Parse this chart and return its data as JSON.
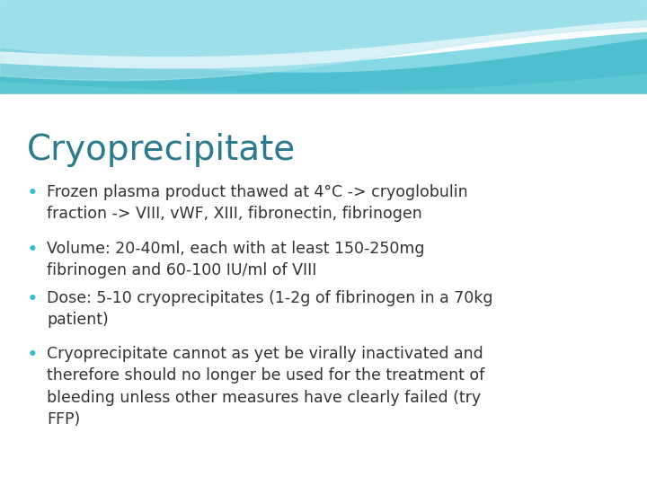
{
  "title": "Cryoprecipitate",
  "title_color": "#2B7B8C",
  "title_fontsize": 28,
  "bg_color": "#FFFFFF",
  "bullet_color": "#3BBDCE",
  "text_color": "#333333",
  "text_fontsize": 12.5,
  "bullets": [
    "Frozen plasma product thawed at 4°C -> cryoglobulin\nfraction -> VIII, vWF, XIII, fibronectin, fibrinogen",
    "Volume: 20-40ml, each with at least 150-250mg\nfibrinogen and 60-100 IU/ml of VIII",
    "Dose: 5-10 cryoprecipitates (1-2g of fibrinogen in a 70kg\npatient)",
    "Cryoprecipitate cannot as yet be virally inactivated and\ntherefore should no longer be used for the treatment of\nbleeding unless other measures have clearly failed (try\nFFP)"
  ],
  "slide_bg": "#FFFFFF"
}
